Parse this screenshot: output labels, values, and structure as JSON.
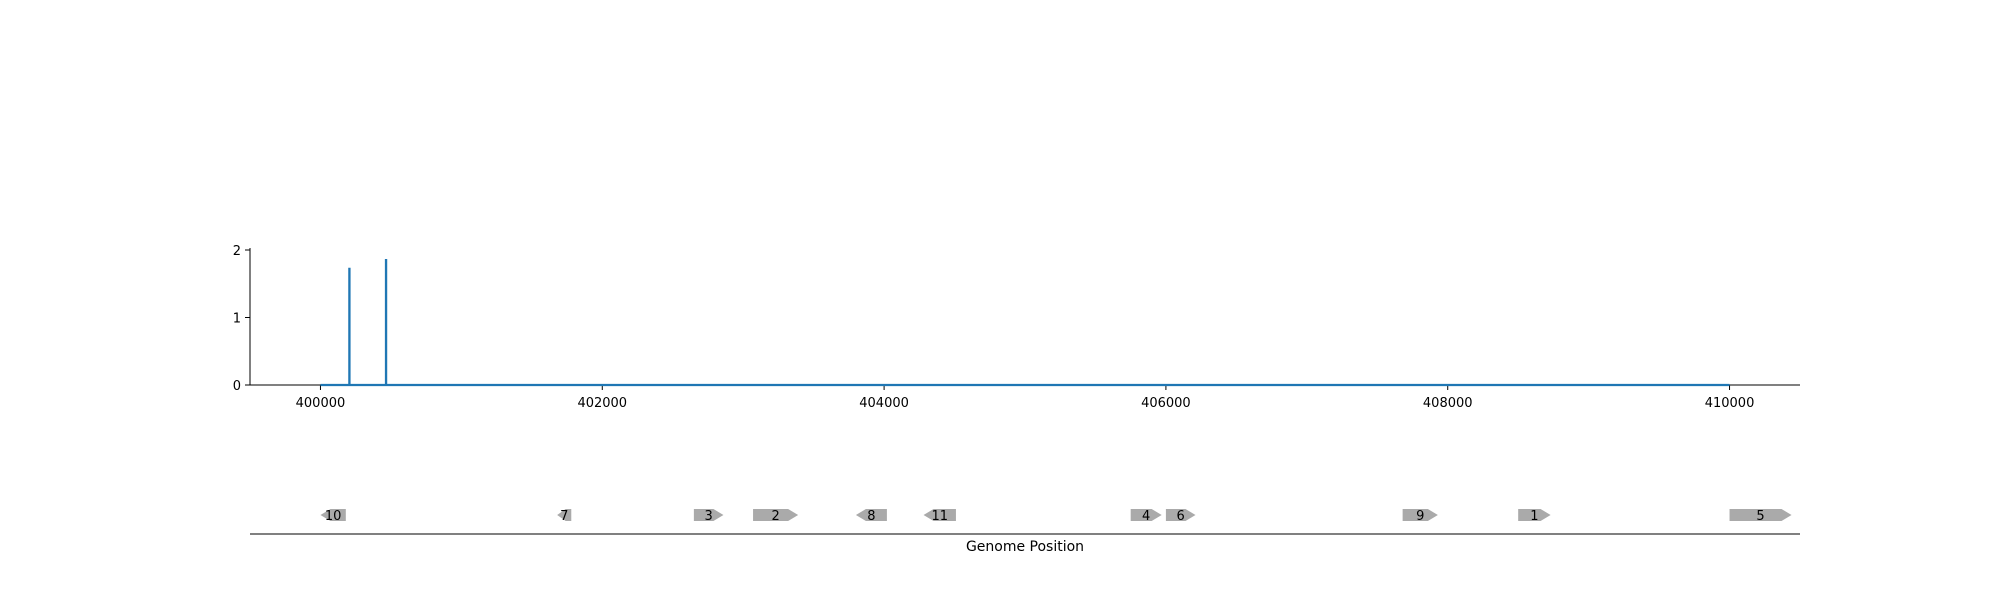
{
  "chart_data": [
    {
      "type": "line",
      "title": "",
      "xlabel": "",
      "ylabel": "",
      "xlim": [
        399500,
        410500
      ],
      "ylim": [
        0,
        2
      ],
      "x_ticks": [
        400000,
        402000,
        404000,
        406000,
        408000,
        410000
      ],
      "y_ticks": [
        0,
        1,
        2
      ],
      "grid": false,
      "color": "#1f77b4",
      "series": [
        {
          "x": [
            400000,
            400205,
            400205,
            400206,
            400206,
            400465,
            400465,
            400466,
            400466,
            410000
          ],
          "values": [
            0,
            0,
            1.72,
            1.72,
            0,
            0,
            1.85,
            1.85,
            0,
            0
          ]
        }
      ]
    },
    {
      "type": "gene-track",
      "xlabel": "Genome Position",
      "xlim": [
        399500,
        410500
      ],
      "color": "#aaaaaa",
      "genes": [
        {
          "label": "10",
          "start": 400000,
          "end": 400180,
          "strand": -1
        },
        {
          "label": "7",
          "start": 401680,
          "end": 401780,
          "strand": -1
        },
        {
          "label": "3",
          "start": 402650,
          "end": 402860,
          "strand": 1
        },
        {
          "label": "2",
          "start": 403070,
          "end": 403390,
          "strand": 1
        },
        {
          "label": "8",
          "start": 403800,
          "end": 404020,
          "strand": -1
        },
        {
          "label": "11",
          "start": 404280,
          "end": 404510,
          "strand": -1
        },
        {
          "label": "4",
          "start": 405750,
          "end": 405970,
          "strand": 1
        },
        {
          "label": "6",
          "start": 406000,
          "end": 406210,
          "strand": 1
        },
        {
          "label": "9",
          "start": 407680,
          "end": 407930,
          "strand": 1
        },
        {
          "label": "1",
          "start": 408500,
          "end": 408730,
          "strand": 1
        },
        {
          "label": "5",
          "start": 410000,
          "end": 410440,
          "strand": 1
        }
      ]
    }
  ]
}
